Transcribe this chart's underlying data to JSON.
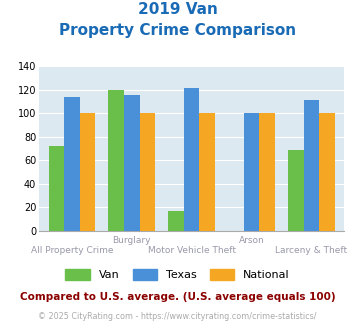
{
  "title_line1": "2019 Van",
  "title_line2": "Property Crime Comparison",
  "van": [
    72,
    120,
    17,
    0,
    69
  ],
  "texas": [
    114,
    115,
    121,
    100,
    111
  ],
  "national": [
    100,
    100,
    100,
    100,
    100
  ],
  "van_color": "#6abf4b",
  "texas_color": "#4a90d9",
  "national_color": "#f5a623",
  "title_color": "#1a6bb5",
  "bg_color": "#dde9f0",
  "ylim": [
    0,
    140
  ],
  "yticks": [
    0,
    20,
    40,
    60,
    80,
    100,
    120,
    140
  ],
  "legend_labels": [
    "Van",
    "Texas",
    "National"
  ],
  "top_labels": {
    "1": "Burglary",
    "3": "Arson"
  },
  "bottom_labels": {
    "0": "All Property Crime",
    "2": "Motor Vehicle Theft",
    "4": "Larceny & Theft"
  },
  "footnote1": "Compared to U.S. average. (U.S. average equals 100)",
  "footnote2": "© 2025 CityRating.com - https://www.cityrating.com/crime-statistics/",
  "footnote1_color": "#8b0000",
  "footnote2_color": "#aaaaaa",
  "footnote2_link_color": "#4a90d9"
}
